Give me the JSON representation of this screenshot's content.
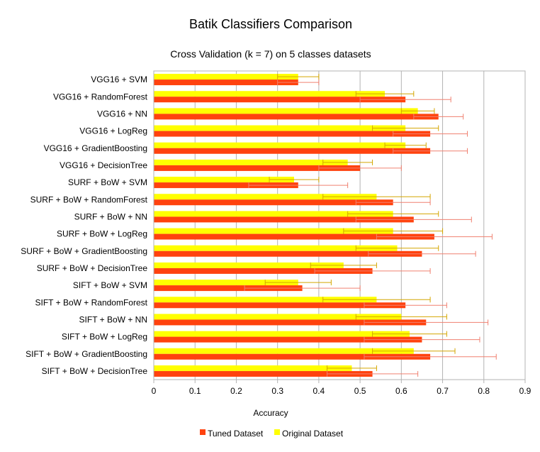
{
  "chart_data": {
    "type": "bar",
    "orientation": "horizontal",
    "title": "Batik Classifiers Comparison",
    "subtitle": "Cross Validation (k = 7) on 5 classes datasets",
    "xlabel": "Accuracy",
    "ylabel": "",
    "xlim": [
      0,
      0.9
    ],
    "xticks": [
      "0",
      "0.1",
      "0.2",
      "0.3",
      "0.4",
      "0.5",
      "0.6",
      "0.7",
      "0.8",
      "0.9"
    ],
    "grid": true,
    "legend_position": "bottom",
    "categories": [
      "VGG16 + SVM",
      "VGG16 + RandomForest",
      "VGG16 + NN",
      "VGG16 + LogReg",
      "VGG16 + GradientBoosting",
      "VGG16 + DecisionTree",
      "SURF + BoW + SVM",
      "SURF + BoW + RandomForest",
      "SURF + BoW + NN",
      "SURF + BoW + LogReg",
      "SURF + BoW + GradientBoosting",
      "SURF + BoW + DecisionTree",
      "SIFT + BoW + SVM",
      "SIFT + BoW + RandomForest",
      "SIFT + BoW + NN",
      "SIFT + BoW + LogReg",
      "SIFT + BoW + GradientBoosting",
      "SIFT + BoW + DecisionTree"
    ],
    "series": [
      {
        "name": "Original Dataset",
        "color": "#ffff00",
        "values": [
          0.35,
          0.56,
          0.64,
          0.61,
          0.61,
          0.47,
          0.34,
          0.54,
          0.58,
          0.58,
          0.59,
          0.46,
          0.35,
          0.54,
          0.6,
          0.62,
          0.63,
          0.48
        ],
        "errors": [
          0.05,
          0.07,
          0.04,
          0.08,
          0.05,
          0.06,
          0.06,
          0.13,
          0.11,
          0.12,
          0.1,
          0.08,
          0.08,
          0.13,
          0.11,
          0.09,
          0.1,
          0.06
        ]
      },
      {
        "name": "Tuned Dataset",
        "color": "#ff420e",
        "values": [
          0.35,
          0.61,
          0.69,
          0.67,
          0.67,
          0.5,
          0.35,
          0.58,
          0.63,
          0.68,
          0.65,
          0.53,
          0.36,
          0.61,
          0.66,
          0.65,
          0.67,
          0.53
        ],
        "errors": [
          0.05,
          0.11,
          0.06,
          0.09,
          0.09,
          0.1,
          0.12,
          0.09,
          0.14,
          0.14,
          0.13,
          0.14,
          0.14,
          0.1,
          0.15,
          0.14,
          0.16,
          0.11
        ]
      }
    ],
    "legend": [
      "Tuned Dataset",
      "Original Dataset"
    ]
  }
}
